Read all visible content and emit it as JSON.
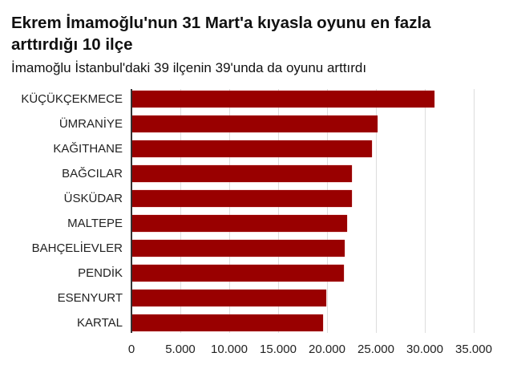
{
  "header": {
    "title": "Ekrem İmamoğlu'nun 31 Mart'a kıyasla oyunu en fazla arttırdığı 10 ilçe",
    "subtitle": "İmamoğlu İstanbul'daki 39 ilçenin 39'unda da oyunu arttırdı"
  },
  "colors": {
    "bar": "#990000",
    "text": "#222222",
    "grid": "#dddddd",
    "axis": "#333333"
  },
  "chart_data": {
    "type": "bar",
    "orientation": "horizontal",
    "title": "Ekrem İmamoğlu'nun 31 Mart'a kıyasla oyunu en fazla arttırdığı 10 ilçe",
    "subtitle": "İmamoğlu İstanbul'daki 39 ilçenin 39'unda da oyunu arttırdı",
    "xlabel": "",
    "ylabel": "",
    "categories": [
      "KÜÇÜKÇEKMECE",
      "ÜMRANİYE",
      "KAĞITHANE",
      "BAĞCILAR",
      "ÜSKÜDAR",
      "MALTEPE",
      "BAHÇELİEVLER",
      "PENDİK",
      "ESENYURT",
      "KARTAL"
    ],
    "values": [
      30900,
      25100,
      24500,
      22450,
      22450,
      21950,
      21700,
      21600,
      19800,
      19500
    ],
    "xlim": [
      0,
      35000
    ],
    "xticks": [
      0,
      5000,
      10000,
      15000,
      20000,
      25000,
      30000,
      35000
    ],
    "xtick_labels": [
      "0",
      "5.000",
      "10.000",
      "15.000",
      "20.000",
      "25.000",
      "30.000",
      "35.000"
    ],
    "grid": true,
    "legend": null
  }
}
